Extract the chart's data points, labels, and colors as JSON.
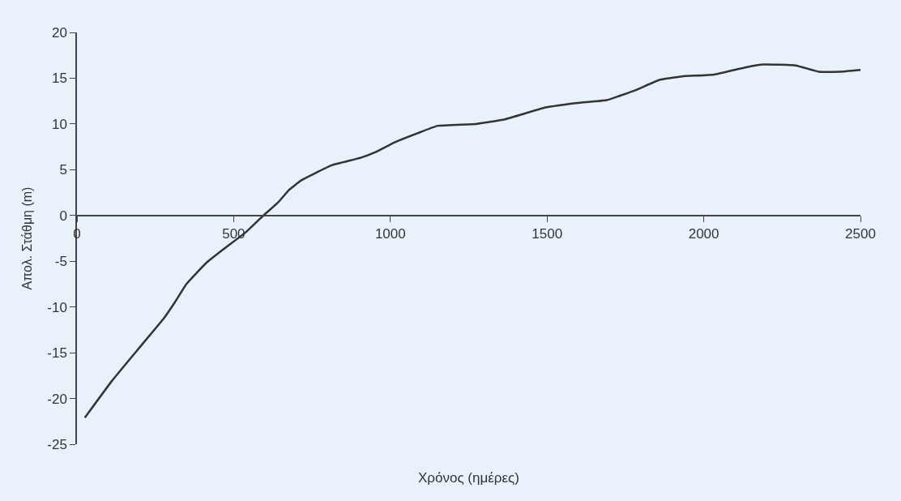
{
  "chart_data": {
    "type": "line",
    "xlabel": "Χρόνος (ημέρες)",
    "ylabel": "Απολ. Στάθμη (m)",
    "xlim": [
      0,
      2500
    ],
    "xticks": [
      0,
      500,
      1000,
      1500,
      2000,
      2500
    ],
    "ylim": [
      -25,
      20
    ],
    "yticks": [
      -25,
      -20,
      -15,
      -10,
      -5,
      0,
      5,
      10,
      15,
      20
    ],
    "grid": false,
    "marker": "none",
    "line_style": "solid",
    "series": [
      {
        "color": "#333333",
        "x": [
          25,
          111,
          193,
          276,
          312,
          349,
          412,
          467,
          540,
          595,
          641,
          677,
          714,
          759,
          814,
          905,
          951,
          1015,
          1088,
          1151,
          1273,
          1365,
          1495,
          1597,
          1690,
          1783,
          1857,
          1931,
          2033,
          2135,
          2191,
          2293,
          2367,
          2432,
          2500
        ],
        "values": [
          -22.1,
          -18.1,
          -14.7,
          -11.3,
          -9.5,
          -7.5,
          -5.2,
          -3.7,
          -1.8,
          0,
          1.4,
          2.8,
          3.8,
          4.6,
          5.5,
          6.3,
          6.9,
          8.0,
          9.0,
          9.8,
          10.0,
          10.5,
          11.8,
          12.3,
          12.6,
          13.7,
          14.8,
          15.2,
          15.4,
          16.2,
          16.5,
          16.4,
          15.7,
          15.7,
          15.9
        ]
      }
    ]
  }
}
